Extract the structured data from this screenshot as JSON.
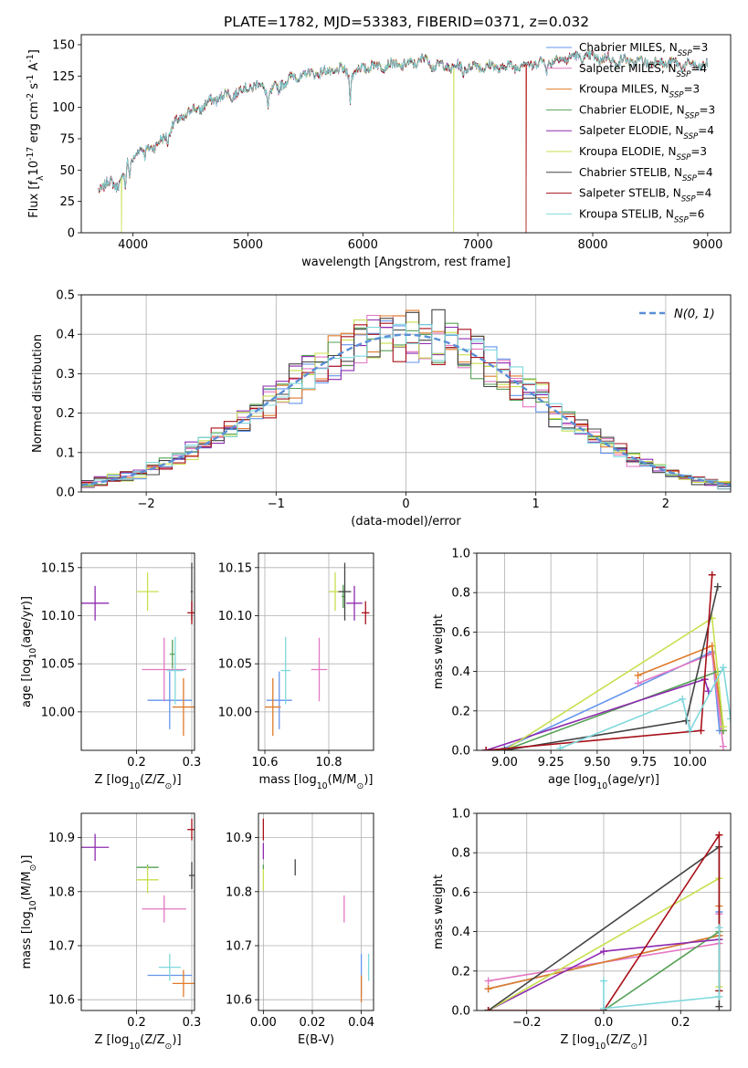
{
  "figure_title": "PLATE=1782, MJD=53383, FIBERID=0371, z=0.032",
  "colors": {
    "chabrier_miles": "#6495ED",
    "salpeter_miles": "#E377C2",
    "kroupa_miles": "#E07B2A",
    "chabrier_elodie": "#55A055",
    "salpeter_elodie": "#8E2BB0",
    "kroupa_elodie": "#C7E04F",
    "chabrier_stelib": "#444444",
    "salpeter_stelib": "#A8101A",
    "kroupa_stelib": "#7FD8DC"
  },
  "chart_data": [
    {
      "id": "spectrum",
      "type": "line",
      "title": "PLATE=1782, MJD=53383, FIBERID=0371, z=0.032",
      "xlabel": "wavelength [Angstrom, rest frame]",
      "ylabel": "Flux [f$_\\lambda$10$^{-17}$ erg cm$^{-2}$ s$^{-1}$ A$^{-1}$]",
      "xlim": [
        3550,
        9200
      ],
      "ylim": [
        0,
        158
      ],
      "xticks": [
        4000,
        5000,
        6000,
        7000,
        8000,
        9000
      ],
      "yticks": [
        0,
        25,
        50,
        75,
        100,
        125,
        150
      ],
      "legend_position": "top-right",
      "legend": [
        {
          "label": "Chabrier MILES, N",
          "sub": "SSP",
          "n": "=3",
          "color": "#6495ED"
        },
        {
          "label": "Salpeter MILES, N",
          "sub": "SSP",
          "n": "=4",
          "color": "#E377C2"
        },
        {
          "label": "Kroupa MILES, N",
          "sub": "SSP",
          "n": "=3",
          "color": "#E07B2A"
        },
        {
          "label": "Chabrier ELODIE, N",
          "sub": "SSP",
          "n": "=3",
          "color": "#55A055"
        },
        {
          "label": "Salpeter ELODIE, N",
          "sub": "SSP",
          "n": "=4",
          "color": "#8E2BB0"
        },
        {
          "label": "Kroupa ELODIE, N",
          "sub": "SSP",
          "n": "=3",
          "color": "#C7E04F"
        },
        {
          "label": "Chabrier STELIB, N",
          "sub": "SSP",
          "n": "=4",
          "color": "#444444"
        },
        {
          "label": "Salpeter STELIB, N",
          "sub": "SSP",
          "n": "=4",
          "color": "#A8101A"
        },
        {
          "label": "Kroupa STELIB, N",
          "sub": "SSP",
          "n": "=6",
          "color": "#7FD8DC"
        }
      ],
      "continuum": [
        [
          3700,
          35
        ],
        [
          3750,
          38
        ],
        [
          3800,
          40
        ],
        [
          3850,
          38
        ],
        [
          3900,
          42
        ],
        [
          3950,
          55
        ],
        [
          4000,
          60
        ],
        [
          4050,
          66
        ],
        [
          4100,
          65
        ],
        [
          4150,
          70
        ],
        [
          4200,
          68
        ],
        [
          4300,
          80
        ],
        [
          4400,
          90
        ],
        [
          4500,
          97
        ],
        [
          4600,
          100
        ],
        [
          4700,
          106
        ],
        [
          4800,
          110
        ],
        [
          4900,
          112
        ],
        [
          5000,
          116
        ],
        [
          5100,
          118
        ],
        [
          5200,
          112
        ],
        [
          5300,
          120
        ],
        [
          5400,
          124
        ],
        [
          5500,
          126
        ],
        [
          5600,
          128
        ],
        [
          5700,
          128
        ],
        [
          5800,
          130
        ],
        [
          5900,
          126
        ],
        [
          6000,
          132
        ],
        [
          6200,
          134
        ],
        [
          6400,
          134
        ],
        [
          6563,
          140
        ],
        [
          6600,
          134
        ],
        [
          6800,
          132
        ],
        [
          7000,
          133
        ],
        [
          7200,
          132
        ],
        [
          7400,
          134
        ],
        [
          7600,
          136
        ],
        [
          7800,
          140
        ],
        [
          8000,
          140
        ],
        [
          8200,
          138
        ],
        [
          8400,
          136
        ],
        [
          8600,
          136
        ],
        [
          8800,
          134
        ],
        [
          9000,
          133
        ]
      ],
      "dropouts": [
        {
          "series": "kroupa_elodie",
          "x": [
            3900,
            6790
          ]
        },
        {
          "series": "salpeter_stelib",
          "x": [
            7420
          ]
        },
        {
          "series": "kroupa_miles",
          "x": [
            7420
          ]
        }
      ]
    },
    {
      "id": "residuals",
      "type": "step-histogram",
      "xlabel": "(data-model)/error",
      "ylabel": "Normed distribution",
      "xlim": [
        -2.5,
        2.5
      ],
      "ylim": [
        0,
        0.5
      ],
      "xticks": [
        -2,
        -1,
        0,
        1,
        2
      ],
      "yticks": [
        0.0,
        0.1,
        0.2,
        0.3,
        0.4,
        0.5
      ],
      "grid": true,
      "legend_position": "top-right",
      "legend_label": "N(0, 1)",
      "reference_curve": {
        "name": "N(0, 1)",
        "mean": 0,
        "sigma": 1,
        "color": "#5B8FD6"
      },
      "bin_width": 0.1,
      "x_range": [
        -2.5,
        2.5
      ]
    },
    {
      "id": "age_vs_Z",
      "type": "scatter",
      "xlabel": "Z [log$_{10}$(Z/Z$_\\odot$)]",
      "ylabel": "age  [log$_{10}$(age/yr)]",
      "xlim": [
        0.1,
        0.305
      ],
      "ylim": [
        9.96,
        10.165
      ],
      "xticks": [
        0.2,
        0.3
      ],
      "yticks": [
        10.0,
        10.05,
        10.1,
        10.15
      ],
      "grid": true,
      "points": [
        {
          "series": "chabrier_miles",
          "x": 0.26,
          "y": 10.012,
          "xerr": 0.04,
          "yerr": 0.03
        },
        {
          "series": "salpeter_miles",
          "x": 0.25,
          "y": 10.044,
          "xerr": 0.04,
          "yerr": 0.033
        },
        {
          "series": "kroupa_miles",
          "x": 0.285,
          "y": 10.005,
          "xerr": 0.02,
          "yerr": 0.03
        },
        {
          "series": "chabrier_elodie",
          "x": 0.265,
          "y": 10.06,
          "xerr": 0.005,
          "yerr": 0.015
        },
        {
          "series": "salpeter_elodie",
          "x": 0.125,
          "y": 10.113,
          "xerr": 0.025,
          "yerr": 0.018
        },
        {
          "series": "kroupa_elodie",
          "x": 0.22,
          "y": 10.125,
          "xerr": 0.02,
          "yerr": 0.02
        },
        {
          "series": "chabrier_stelib",
          "x": 0.3,
          "y": 10.125,
          "xerr": 0.002,
          "yerr": 0.03
        },
        {
          "series": "salpeter_stelib",
          "x": 0.3,
          "y": 10.103,
          "xerr": 0.008,
          "yerr": 0.012
        },
        {
          "series": "kroupa_stelib",
          "x": 0.27,
          "y": 10.043,
          "xerr": 0.015,
          "yerr": 0.035
        }
      ]
    },
    {
      "id": "age_vs_mass",
      "type": "scatter",
      "xlabel": "mass [log$_{10}$(M/M$_\\odot$)]",
      "ylabel": "",
      "xlim": [
        10.58,
        10.94
      ],
      "ylim": [
        9.96,
        10.165
      ],
      "xticks": [
        10.6,
        10.8
      ],
      "yticks": [
        10.0,
        10.05,
        10.1,
        10.15
      ],
      "grid": true,
      "points": [
        {
          "series": "chabrier_miles",
          "x": 10.645,
          "y": 10.012,
          "xerr": 0.04,
          "yerr": 0.03
        },
        {
          "series": "salpeter_miles",
          "x": 10.77,
          "y": 10.044,
          "xerr": 0.025,
          "yerr": 0.033
        },
        {
          "series": "kroupa_miles",
          "x": 10.625,
          "y": 10.005,
          "xerr": 0.025,
          "yerr": 0.03
        },
        {
          "series": "chabrier_elodie",
          "x": 10.845,
          "y": 10.12,
          "xerr": 0.005,
          "yerr": 0.012
        },
        {
          "series": "salpeter_elodie",
          "x": 10.88,
          "y": 10.113,
          "xerr": 0.025,
          "yerr": 0.018
        },
        {
          "series": "kroupa_elodie",
          "x": 10.82,
          "y": 10.125,
          "xerr": 0.02,
          "yerr": 0.02
        },
        {
          "series": "chabrier_stelib",
          "x": 10.85,
          "y": 10.125,
          "xerr": 0.02,
          "yerr": 0.03
        },
        {
          "series": "salpeter_stelib",
          "x": 10.915,
          "y": 10.103,
          "xerr": 0.012,
          "yerr": 0.012
        },
        {
          "series": "kroupa_stelib",
          "x": 10.665,
          "y": 10.043,
          "xerr": 0.015,
          "yerr": 0.035
        }
      ]
    },
    {
      "id": "weight_vs_age",
      "type": "line",
      "xlabel": "age  [log$_{10}$(age/yr)]",
      "ylabel": "mass weight",
      "xlim": [
        8.85,
        10.22
      ],
      "ylim": [
        0,
        1.0
      ],
      "xticks": [
        9.0,
        9.25,
        9.5,
        9.75,
        10.0
      ],
      "yticks": [
        0.0,
        0.2,
        0.4,
        0.6,
        0.8,
        1.0
      ],
      "grid": true,
      "series": [
        {
          "series": "chabrier_miles",
          "x": [
            9.0,
            10.12,
            10.16
          ],
          "y": [
            0.01,
            0.5,
            0.1
          ]
        },
        {
          "series": "salpeter_miles",
          "x": [
            9.72,
            10.12,
            10.18
          ],
          "y": [
            0.34,
            0.49,
            0.02
          ]
        },
        {
          "series": "kroupa_miles",
          "x": [
            9.72,
            10.12,
            10.18
          ],
          "y": [
            0.38,
            0.53,
            0.1
          ]
        },
        {
          "series": "chabrier_elodie",
          "x": [
            9.0,
            10.15,
            10.18
          ],
          "y": [
            0.0,
            0.4,
            0.1
          ]
        },
        {
          "series": "salpeter_elodie",
          "x": [
            8.9,
            10.08,
            10.1
          ],
          "y": [
            0.0,
            0.36,
            0.3
          ]
        },
        {
          "series": "kroupa_elodie",
          "x": [
            9.0,
            10.12,
            10.18
          ],
          "y": [
            0.0,
            0.67,
            0.12
          ]
        },
        {
          "series": "chabrier_stelib",
          "x": [
            9.0,
            9.98,
            10.15
          ],
          "y": [
            0.0,
            0.15,
            0.83
          ]
        },
        {
          "series": "salpeter_stelib",
          "x": [
            8.9,
            10.06,
            10.12
          ],
          "y": [
            0.0,
            0.1,
            0.89
          ]
        },
        {
          "series": "kroupa_stelib",
          "x": [
            9.3,
            9.96,
            10.0,
            10.18,
            10.22
          ],
          "y": [
            0.01,
            0.26,
            0.1,
            0.42,
            0.16
          ]
        }
      ]
    },
    {
      "id": "mass_vs_Z",
      "type": "scatter",
      "xlabel": "Z [log$_{10}$(Z/Z$_\\odot$)]",
      "ylabel": "mass [log$_{10}$(M/M$_\\odot$)]",
      "xlim": [
        0.1,
        0.305
      ],
      "ylim": [
        10.58,
        10.945
      ],
      "xticks": [
        0.2,
        0.3
      ],
      "yticks": [
        10.6,
        10.7,
        10.8,
        10.9
      ],
      "grid": true,
      "points": [
        {
          "series": "chabrier_miles",
          "x": 0.26,
          "y": 10.645,
          "xerr": 0.04,
          "yerr": 0.0
        },
        {
          "series": "salpeter_miles",
          "x": 0.25,
          "y": 10.768,
          "xerr": 0.04,
          "yerr": 0.025
        },
        {
          "series": "kroupa_miles",
          "x": 0.285,
          "y": 10.63,
          "xerr": 0.02,
          "yerr": 0.025
        },
        {
          "series": "chabrier_elodie",
          "x": 0.22,
          "y": 10.845,
          "xerr": 0.02,
          "yerr": 0.005
        },
        {
          "series": "salpeter_elodie",
          "x": 0.125,
          "y": 10.882,
          "xerr": 0.025,
          "yerr": 0.025
        },
        {
          "series": "kroupa_elodie",
          "x": 0.22,
          "y": 10.822,
          "xerr": 0.02,
          "yerr": 0.025
        },
        {
          "series": "chabrier_stelib",
          "x": 0.3,
          "y": 10.83,
          "xerr": 0.005,
          "yerr": 0.025
        },
        {
          "series": "salpeter_stelib",
          "x": 0.3,
          "y": 10.915,
          "xerr": 0.008,
          "yerr": 0.02
        },
        {
          "series": "kroupa_stelib",
          "x": 0.26,
          "y": 10.66,
          "xerr": 0.02,
          "yerr": 0.025
        }
      ]
    },
    {
      "id": "mass_vs_ebv",
      "type": "scatter",
      "xlabel": "E(B-V)",
      "ylabel": "",
      "xlim": [
        -0.002,
        0.045
      ],
      "ylim": [
        10.58,
        10.945
      ],
      "xticks": [
        0.0,
        0.02,
        0.04
      ],
      "yticks": [
        10.6,
        10.7,
        10.8,
        10.9
      ],
      "grid": true,
      "points": [
        {
          "series": "chabrier_miles",
          "x": 0.04,
          "y": 10.645,
          "xerr": 0,
          "yerr": 0.04
        },
        {
          "series": "salpeter_miles",
          "x": 0.033,
          "y": 10.768,
          "xerr": 0,
          "yerr": 0.025
        },
        {
          "series": "kroupa_miles",
          "x": 0.04,
          "y": 10.62,
          "xerr": 0,
          "yerr": 0.025
        },
        {
          "series": "chabrier_elodie",
          "x": 0.0,
          "y": 10.845,
          "xerr": 0,
          "yerr": 0.005
        },
        {
          "series": "salpeter_elodie",
          "x": 0.0,
          "y": 10.875,
          "xerr": 0,
          "yerr": 0.015
        },
        {
          "series": "kroupa_elodie",
          "x": 0.0,
          "y": 10.822,
          "xerr": 0,
          "yerr": 0.02
        },
        {
          "series": "chabrier_stelib",
          "x": 0.013,
          "y": 10.845,
          "xerr": 0,
          "yerr": 0.015
        },
        {
          "series": "salpeter_stelib",
          "x": 0.0,
          "y": 10.915,
          "xerr": 0,
          "yerr": 0.02
        },
        {
          "series": "kroupa_stelib",
          "x": 0.043,
          "y": 10.66,
          "xerr": 0,
          "yerr": 0.025
        }
      ]
    },
    {
      "id": "weight_vs_Z",
      "type": "line",
      "xlabel": "Z [log$_{10}$(Z/Z$_\\odot$)]",
      "ylabel": "mass weight",
      "xlim": [
        -0.33,
        0.33
      ],
      "ylim": [
        0,
        1.0
      ],
      "xticks": [
        -0.2,
        0.0,
        0.2
      ],
      "yticks": [
        0.0,
        0.2,
        0.4,
        0.6,
        0.8,
        1.0
      ],
      "grid": true,
      "series": [
        {
          "series": "chabrier_miles",
          "x": [
            -0.3,
            0.3,
            0.3
          ],
          "y": [
            0.11,
            0.38,
            0.5
          ]
        },
        {
          "series": "salpeter_miles",
          "x": [
            -0.3,
            0.3,
            0.3
          ],
          "y": [
            0.15,
            0.34,
            0.49
          ]
        },
        {
          "series": "kroupa_miles",
          "x": [
            -0.3,
            0.3,
            0.3
          ],
          "y": [
            0.11,
            0.38,
            0.53
          ]
        },
        {
          "series": "chabrier_elodie",
          "x": [
            0.0,
            0.3,
            0.3
          ],
          "y": [
            0.0,
            0.4,
            0.1
          ]
        },
        {
          "series": "salpeter_elodie",
          "x": [
            -0.3,
            0.0,
            0.3
          ],
          "y": [
            0.0,
            0.3,
            0.36
          ]
        },
        {
          "series": "kroupa_elodie",
          "x": [
            -0.3,
            0.3,
            0.3
          ],
          "y": [
            0.0,
            0.67,
            0.12
          ]
        },
        {
          "series": "chabrier_stelib",
          "x": [
            -0.3,
            0.3,
            0.3
          ],
          "y": [
            0.0,
            0.83,
            0.02
          ]
        },
        {
          "series": "salpeter_stelib",
          "x": [
            -0.3,
            0.0,
            0.3,
            0.3
          ],
          "y": [
            0.0,
            0.0,
            0.89,
            0.1
          ]
        },
        {
          "series": "kroupa_stelib",
          "x": [
            0.0,
            0.0,
            0.3,
            0.3
          ],
          "y": [
            0.15,
            0.01,
            0.07,
            0.42
          ]
        }
      ]
    }
  ]
}
